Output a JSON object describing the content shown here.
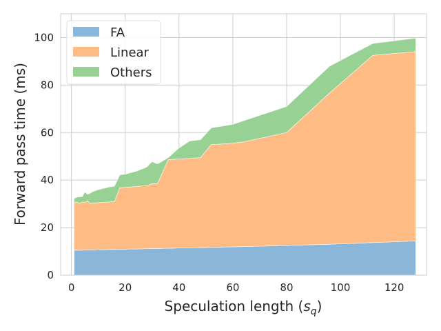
{
  "chart_data": {
    "type": "area",
    "stacked": true,
    "xlabel": "Speculation length (s_q)",
    "xlabel_main": "Speculation length (",
    "xlabel_sym": "s",
    "xlabel_sub": "q",
    "xlabel_end": ")",
    "ylabel": "Forward pass time (ms)",
    "xlim": [
      -4,
      132
    ],
    "ylim": [
      0,
      110
    ],
    "xticks": [
      0,
      20,
      40,
      60,
      80,
      100,
      120
    ],
    "yticks": [
      0,
      20,
      40,
      60,
      80,
      100
    ],
    "grid": true,
    "legend_position": "top-left",
    "x": [
      1,
      2,
      3,
      4,
      5,
      6,
      7,
      8,
      10,
      12,
      14,
      16,
      18,
      20,
      22,
      24,
      28,
      30,
      32,
      36,
      40,
      44,
      48,
      52,
      56,
      60,
      64,
      80,
      96,
      112,
      128
    ],
    "series": [
      {
        "name": "FA",
        "color": "#8ab6d9",
        "values": [
          10.5,
          10.5,
          10.5,
          10.5,
          10.6,
          10.6,
          10.6,
          10.6,
          10.7,
          10.7,
          10.8,
          10.8,
          10.9,
          10.9,
          11.0,
          11.0,
          11.1,
          11.2,
          11.2,
          11.3,
          11.4,
          11.5,
          11.6,
          11.7,
          11.8,
          11.9,
          12.0,
          12.5,
          13.0,
          13.7,
          14.4
        ]
      },
      {
        "name": "Linear",
        "color": "#ffbb84",
        "values": [
          19.8,
          20.3,
          19.6,
          20.3,
          20.0,
          20.7,
          19.6,
          19.7,
          19.8,
          19.9,
          20.0,
          20.2,
          25.9,
          26.0,
          26.1,
          26.3,
          26.6,
          27.3,
          27.3,
          37.3,
          37.5,
          37.6,
          37.9,
          43.3,
          43.4,
          43.6,
          44.1,
          47.5,
          63.7,
          78.8,
          79.7
        ]
      },
      {
        "name": "Others",
        "color": "#98d194",
        "values": [
          2.0,
          2.0,
          2.9,
          2.2,
          4.4,
          2.7,
          4.3,
          4.9,
          5.5,
          5.9,
          6.3,
          6.4,
          5.4,
          5.6,
          6.0,
          6.4,
          7.8,
          9.3,
          8.3,
          0.9,
          4.6,
          7.4,
          7.5,
          7.0,
          7.5,
          8.0,
          8.9,
          11.0,
          11.3,
          5.0,
          5.7
        ]
      }
    ]
  }
}
